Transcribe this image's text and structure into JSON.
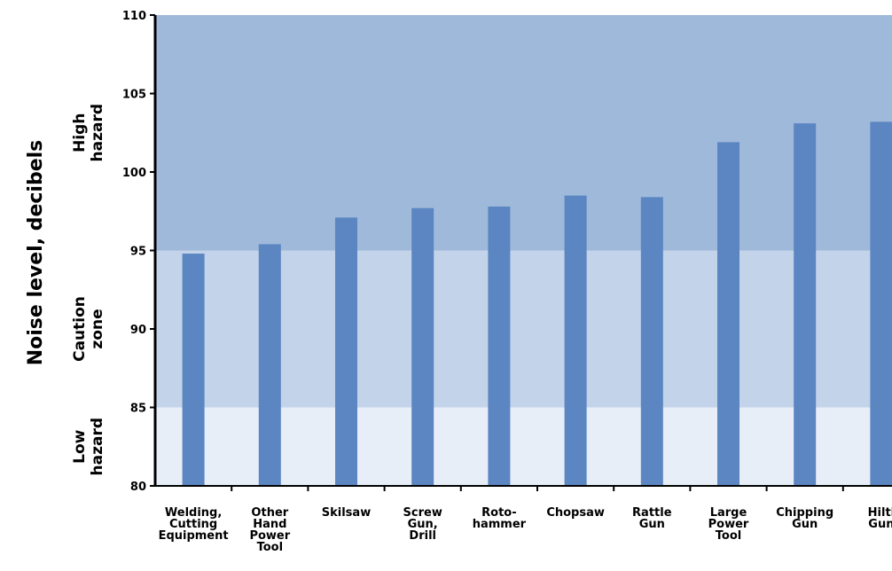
{
  "chart_data": {
    "type": "bar",
    "title": "",
    "xlabel": "",
    "ylabel": "Noise level, decibels",
    "ylim": [
      80,
      110
    ],
    "yticks": [
      80,
      85,
      90,
      95,
      100,
      105,
      110
    ],
    "grid": false,
    "categories": [
      [
        "Welding,",
        "Cutting",
        "Equipment"
      ],
      [
        "Other",
        "Hand",
        "Power",
        "Tool"
      ],
      [
        "Skilsaw"
      ],
      [
        "Screw",
        "Gun,",
        "Drill"
      ],
      [
        "Roto-",
        "hammer"
      ],
      [
        "Chopsaw"
      ],
      [
        "Rattle",
        "Gun"
      ],
      [
        "Large",
        "Power",
        "Tool"
      ],
      [
        "Chipping",
        "Gun"
      ],
      [
        "Hilti",
        "Gun"
      ]
    ],
    "values": [
      94.8,
      95.4,
      97.1,
      97.7,
      97.8,
      98.5,
      98.4,
      101.9,
      103.1,
      103.2
    ],
    "zones": [
      {
        "label": [
          "Low",
          "hazard"
        ],
        "from": 80,
        "to": 85,
        "color": "#e8eef7"
      },
      {
        "label": [
          "Caution",
          "zone"
        ],
        "from": 85,
        "to": 95,
        "color": "#c3d3e9"
      },
      {
        "label": [
          "High",
          "hazard"
        ],
        "from": 95,
        "to": 110,
        "color": "#9fb9da"
      }
    ],
    "bar_color": "#5b86c2"
  }
}
